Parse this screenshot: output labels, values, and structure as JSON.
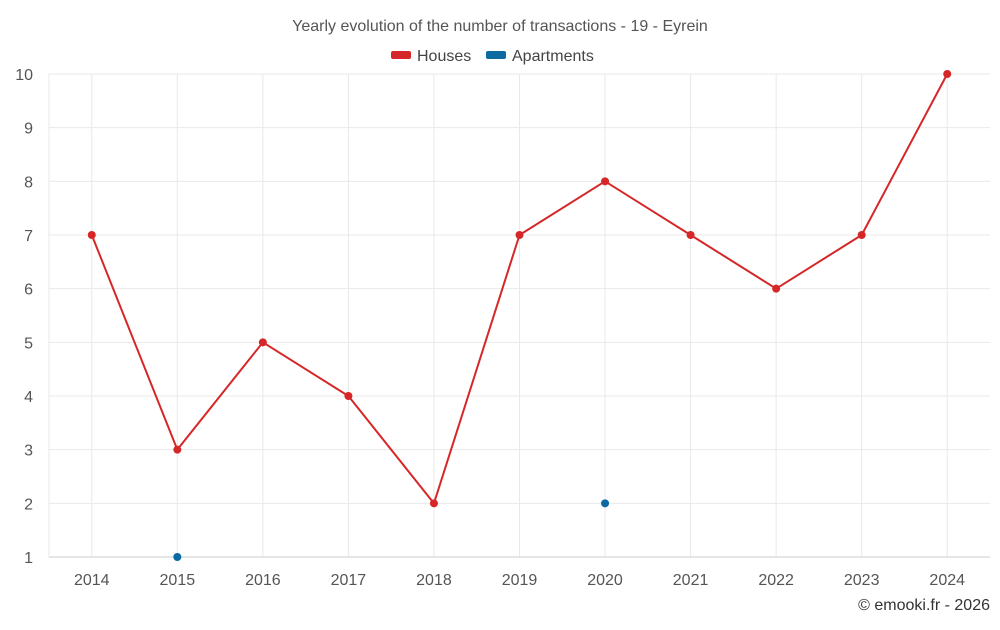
{
  "chart_data": {
    "type": "line",
    "title": "Yearly evolution of the number of transactions - 19 - Eyrein",
    "categories": [
      "2014",
      "2015",
      "2016",
      "2017",
      "2018",
      "2019",
      "2020",
      "2021",
      "2022",
      "2023",
      "2024"
    ],
    "series": [
      {
        "name": "Houses",
        "color": "#d62728",
        "values": [
          7,
          3,
          5,
          4,
          2,
          7,
          8,
          7,
          6,
          7,
          10
        ]
      },
      {
        "name": "Apartments",
        "color": "#0a6aa1",
        "values": [
          null,
          1,
          null,
          null,
          null,
          null,
          2,
          null,
          null,
          null,
          null
        ]
      }
    ],
    "ylim": [
      1,
      10
    ],
    "yticks": [
      1,
      2,
      3,
      4,
      5,
      6,
      7,
      8,
      9,
      10
    ],
    "xlabel": "",
    "ylabel": "",
    "grid": true,
    "legend_position": "top-center"
  },
  "credit": "© emooki.fr - 2026"
}
